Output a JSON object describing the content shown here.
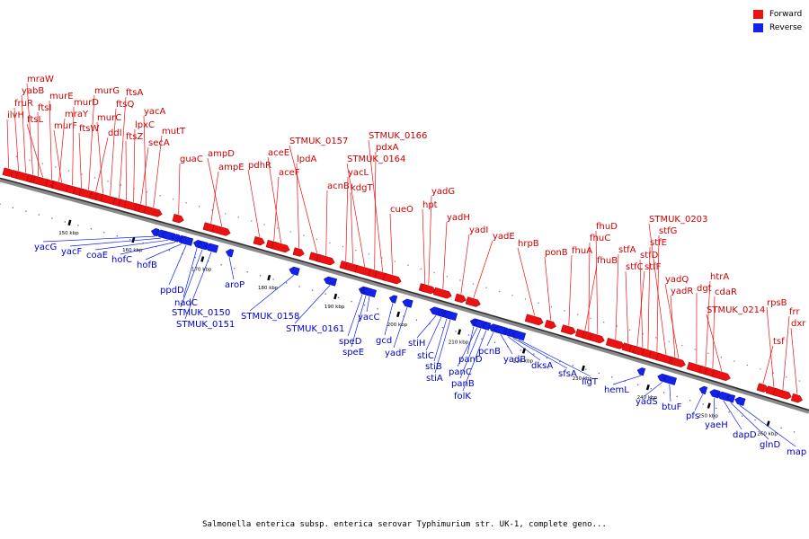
{
  "caption": "Salmonella enterica subsp. enterica serovar Typhimurium str. UK-1, complete geno...",
  "colors": {
    "forward": "#ee1111",
    "reverse": "#1122ee",
    "forward_label": "#cc0000",
    "reverse_label": "#0000cc"
  },
  "legend": [
    {
      "label": "Forward",
      "color": "#ee1111"
    },
    {
      "label": "Reverse",
      "color": "#1122ee"
    }
  ],
  "ticks": [
    "150 kbp",
    "160 kbp",
    "170 kbp",
    "180 kbp",
    "190 kbp",
    "200 kbp",
    "210 kbp",
    "220 kbp",
    "230 kbp",
    "240 kbp",
    "250 kbp",
    "260 kbp"
  ],
  "forward_genes": [
    "ilvH",
    "fruR",
    "yabB",
    "mraW",
    "ftsI",
    "ftsL",
    "murE",
    "mraY",
    "murF",
    "murD",
    "ftsW",
    "murG",
    "ddl",
    "murC",
    "ftsQ",
    "ftsA",
    "ftsZ",
    "lpxC",
    "secA",
    "yacA",
    "mutT",
    "guaC",
    "ampE",
    "ampD",
    "pdhR",
    "aceF",
    "aceE",
    "lpdA",
    "STMUK_0157",
    "acnB",
    "yacL",
    "kdgT",
    "STMUK_0164",
    "pdxA",
    "STMUK_0166",
    "cueO",
    "hpt",
    "yadG",
    "yadH",
    "yadI",
    "yadE",
    "hrpB",
    "ponB",
    "fhuA",
    "fhuB",
    "fhuC",
    "fhuD",
    "stfA",
    "stfC",
    "stfF",
    "stfD",
    "stfE",
    "stfG",
    "STMUK_0203",
    "yadR",
    "yadQ",
    "dgt",
    "htrA",
    "cdaR",
    "STMUK_0214",
    "tsf",
    "rpsB",
    "frr",
    "dxr"
  ],
  "reverse_genes": [
    "yacG",
    "yacF",
    "coaE",
    "hofC",
    "hofB",
    "ppdD",
    "nadC",
    "STMUK_0150",
    "STMUK_0151",
    "aroP",
    "STMUK_0158",
    "STMUK_0161",
    "speD",
    "speE",
    "yacC",
    "gcd",
    "yadF",
    "stiH",
    "stiC",
    "stiB",
    "stiA",
    "panD",
    "panC",
    "panB",
    "folK",
    "pcnB",
    "yadB",
    "dksA",
    "sfsA",
    "ligT",
    "hemL",
    "yadS",
    "btuF",
    "pfs",
    "yaeH",
    "dapD",
    "glnD",
    "map"
  ]
}
